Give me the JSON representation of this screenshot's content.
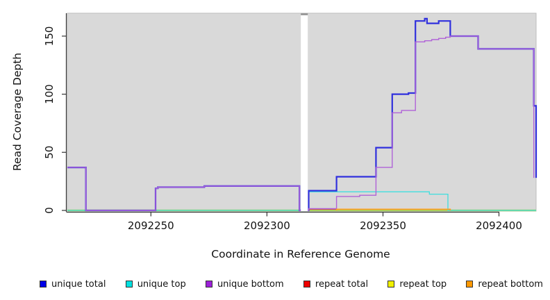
{
  "chart_data": {
    "type": "step-line",
    "title": "",
    "xlabel": "Coordinate in Reference Genome",
    "ylabel": "Read Coverage Depth",
    "xlim": [
      2092214,
      2092416
    ],
    "ylim": [
      0,
      170
    ],
    "grid": false,
    "plot_background": "#d9d9d9",
    "panel_border": "#bdbdbd",
    "axis_color": "#333333",
    "legend_position": "bottom",
    "x_ticks": [
      {
        "value": 2092250,
        "label": "2092250"
      },
      {
        "value": 2092300,
        "label": "2092300"
      },
      {
        "value": 2092350,
        "label": "2092350"
      },
      {
        "value": 2092400,
        "label": "2092400"
      }
    ],
    "y_ticks": [
      {
        "value": 0,
        "label": "0"
      },
      {
        "value": 50,
        "label": "50"
      },
      {
        "value": 100,
        "label": "100"
      },
      {
        "value": 150,
        "label": "150"
      }
    ],
    "mask_region": {
      "x_start": 2092314.6,
      "x_end": 2092317.6,
      "cap_color": "#9a9a9a",
      "fill": "#ffffff"
    },
    "draw_order": [
      4,
      1,
      3,
      0,
      2,
      5
    ],
    "series": [
      {
        "name": "unique total",
        "legend_color": "#0000e8",
        "color": "#3030dd",
        "width": 2.2,
        "points": [
          [
            2092214,
            37
          ],
          [
            2092222,
            37
          ],
          [
            2092222,
            0
          ],
          [
            2092252,
            0
          ],
          [
            2092252,
            19
          ],
          [
            2092253,
            19
          ],
          [
            2092253,
            20
          ],
          [
            2092273,
            20
          ],
          [
            2092273,
            21
          ],
          [
            2092314,
            21
          ],
          [
            2092314,
            0
          ],
          [
            2092318,
            0
          ],
          [
            2092318,
            17
          ],
          [
            2092330,
            17
          ],
          [
            2092330,
            29
          ],
          [
            2092347,
            29
          ],
          [
            2092347,
            54
          ],
          [
            2092354,
            54
          ],
          [
            2092354,
            100
          ],
          [
            2092361,
            100
          ],
          [
            2092361,
            101
          ],
          [
            2092364,
            101
          ],
          [
            2092364,
            163
          ],
          [
            2092368,
            163
          ],
          [
            2092368,
            165
          ],
          [
            2092369,
            165
          ],
          [
            2092369,
            161
          ],
          [
            2092374,
            161
          ],
          [
            2092374,
            163
          ],
          [
            2092379,
            163
          ],
          [
            2092379,
            150
          ],
          [
            2092391,
            150
          ],
          [
            2092391,
            139
          ],
          [
            2092415,
            139
          ],
          [
            2092415,
            90
          ],
          [
            2092416,
            90
          ],
          [
            2092416,
            28
          ]
        ]
      },
      {
        "name": "unique top",
        "legend_color": "#00e0e0",
        "color": "#3fdede",
        "width": 1.3,
        "points": [
          [
            2092214,
            0
          ],
          [
            2092318,
            0
          ],
          [
            2092318,
            16
          ],
          [
            2092370,
            16
          ],
          [
            2092370,
            14
          ],
          [
            2092378,
            14
          ],
          [
            2092378,
            0
          ],
          [
            2092416,
            0
          ]
        ]
      },
      {
        "name": "unique bottom",
        "legend_color": "#9c20d8",
        "color": "#b062d8",
        "width": 1.4,
        "points": [
          [
            2092214,
            37
          ],
          [
            2092222,
            37
          ],
          [
            2092222,
            0
          ],
          [
            2092252,
            0
          ],
          [
            2092252,
            19
          ],
          [
            2092253,
            19
          ],
          [
            2092253,
            20
          ],
          [
            2092273,
            20
          ],
          [
            2092273,
            21
          ],
          [
            2092314,
            21
          ],
          [
            2092314,
            0
          ],
          [
            2092318,
            0
          ],
          [
            2092318,
            1.5
          ],
          [
            2092330,
            1.5
          ],
          [
            2092330,
            12
          ],
          [
            2092340,
            12
          ],
          [
            2092340,
            13
          ],
          [
            2092347,
            13
          ],
          [
            2092347,
            37
          ],
          [
            2092354,
            37
          ],
          [
            2092354,
            84
          ],
          [
            2092358,
            84
          ],
          [
            2092358,
            86
          ],
          [
            2092364,
            86
          ],
          [
            2092364,
            145
          ],
          [
            2092368,
            145
          ],
          [
            2092368,
            146
          ],
          [
            2092371,
            146
          ],
          [
            2092371,
            147
          ],
          [
            2092374,
            147
          ],
          [
            2092374,
            148
          ],
          [
            2092377,
            148
          ],
          [
            2092377,
            149
          ],
          [
            2092379,
            149
          ],
          [
            2092379,
            150
          ],
          [
            2092391,
            150
          ],
          [
            2092391,
            139
          ],
          [
            2092415,
            139
          ],
          [
            2092415,
            28
          ]
        ]
      },
      {
        "name": "repeat total",
        "legend_color": "#ee0000",
        "color": "#e03030",
        "width": 1.2,
        "points": [
          [
            2092318,
            0
          ],
          [
            2092318,
            1
          ],
          [
            2092379,
            1
          ],
          [
            2092379,
            0
          ]
        ]
      },
      {
        "name": "repeat top",
        "legend_color": "#f0f000",
        "color": "#a6cf5a",
        "width": 2.4,
        "points": [
          [
            2092214,
            0
          ],
          [
            2092416,
            0
          ]
        ]
      },
      {
        "name": "repeat bottom",
        "legend_color": "#ff9800",
        "color": "#ff9d1e",
        "width": 1.6,
        "points": [
          [
            2092330,
            0
          ],
          [
            2092330,
            1
          ],
          [
            2092379,
            1
          ],
          [
            2092379,
            0
          ]
        ]
      }
    ]
  }
}
